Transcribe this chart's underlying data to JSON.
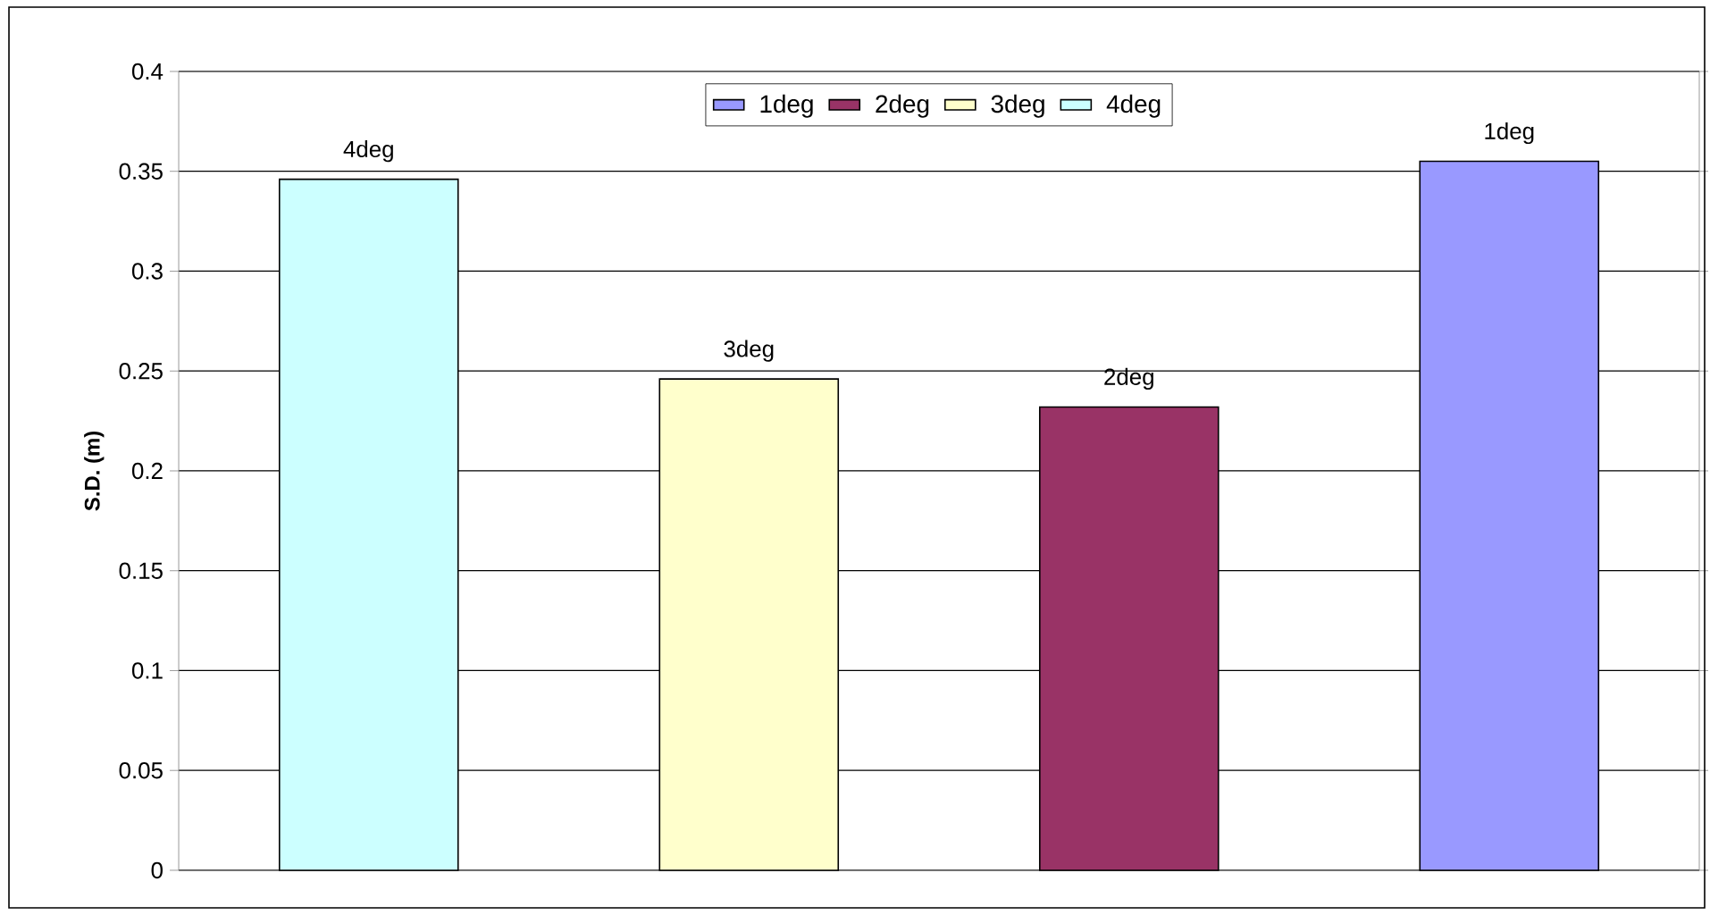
{
  "chart_data": {
    "type": "bar",
    "ylabel": "S.D. (m)",
    "categories": [
      null,
      null,
      null,
      null
    ],
    "series": [
      {
        "name": "1deg",
        "color": "#9999ff",
        "values": [
          null,
          null,
          null,
          0.355
        ]
      },
      {
        "name": "2deg",
        "color": "#993366",
        "values": [
          null,
          null,
          0.232,
          null
        ]
      },
      {
        "name": "3deg",
        "color": "#ffffcc",
        "values": [
          null,
          0.246,
          null,
          null
        ]
      },
      {
        "name": "4deg",
        "color": "#ccffff",
        "values": [
          0.346,
          null,
          null,
          null
        ]
      }
    ],
    "ylim": [
      0,
      0.4
    ],
    "yticks": [
      0,
      0.05,
      0.1,
      0.15,
      0.2,
      0.25,
      0.3,
      0.35,
      0.4
    ],
    "grid": "y",
    "legend": "top",
    "tick_labels": "y"
  }
}
